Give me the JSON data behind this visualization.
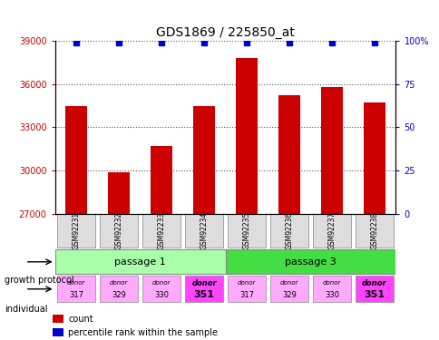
{
  "title": "GDS1869 / 225850_at",
  "samples": [
    "GSM92231",
    "GSM92232",
    "GSM92233",
    "GSM92234",
    "GSM92235",
    "GSM92236",
    "GSM92237",
    "GSM92238"
  ],
  "counts": [
    34500,
    29900,
    31700,
    34500,
    37800,
    35200,
    35800,
    34700
  ],
  "percentiles": [
    99,
    99,
    99,
    99,
    99,
    99,
    99,
    99
  ],
  "ylim_left": [
    27000,
    39000
  ],
  "ylim_right": [
    0,
    100
  ],
  "yticks_left": [
    27000,
    30000,
    33000,
    36000,
    39000
  ],
  "yticks_right": [
    0,
    25,
    50,
    75,
    100
  ],
  "ytick_labels_right": [
    "0",
    "25",
    "50",
    "75",
    "100%"
  ],
  "bar_color": "#cc0000",
  "dot_color": "#0000cc",
  "passage1_color": "#aaffaa",
  "passage3_color": "#44dd44",
  "donor_colors": [
    "#ffaaff",
    "#ffaaff",
    "#ffaaff",
    "#ff44ff",
    "#ffaaff",
    "#ffaaff",
    "#ffaaff",
    "#ff44ff"
  ],
  "passages": [
    "passage 1",
    "passage 3"
  ],
  "passage1_samples": [
    0,
    1,
    2,
    3
  ],
  "passage3_samples": [
    4,
    5,
    6,
    7
  ],
  "donors": [
    "317",
    "329",
    "330",
    "351",
    "317",
    "329",
    "330",
    "351"
  ],
  "growth_protocol_label": "growth protocol",
  "individual_label": "individual",
  "legend_count": "count",
  "legend_percentile": "percentile rank within the sample",
  "grid_color": "#888888",
  "left_axis_color": "#cc0000",
  "right_axis_color": "#0000cc"
}
